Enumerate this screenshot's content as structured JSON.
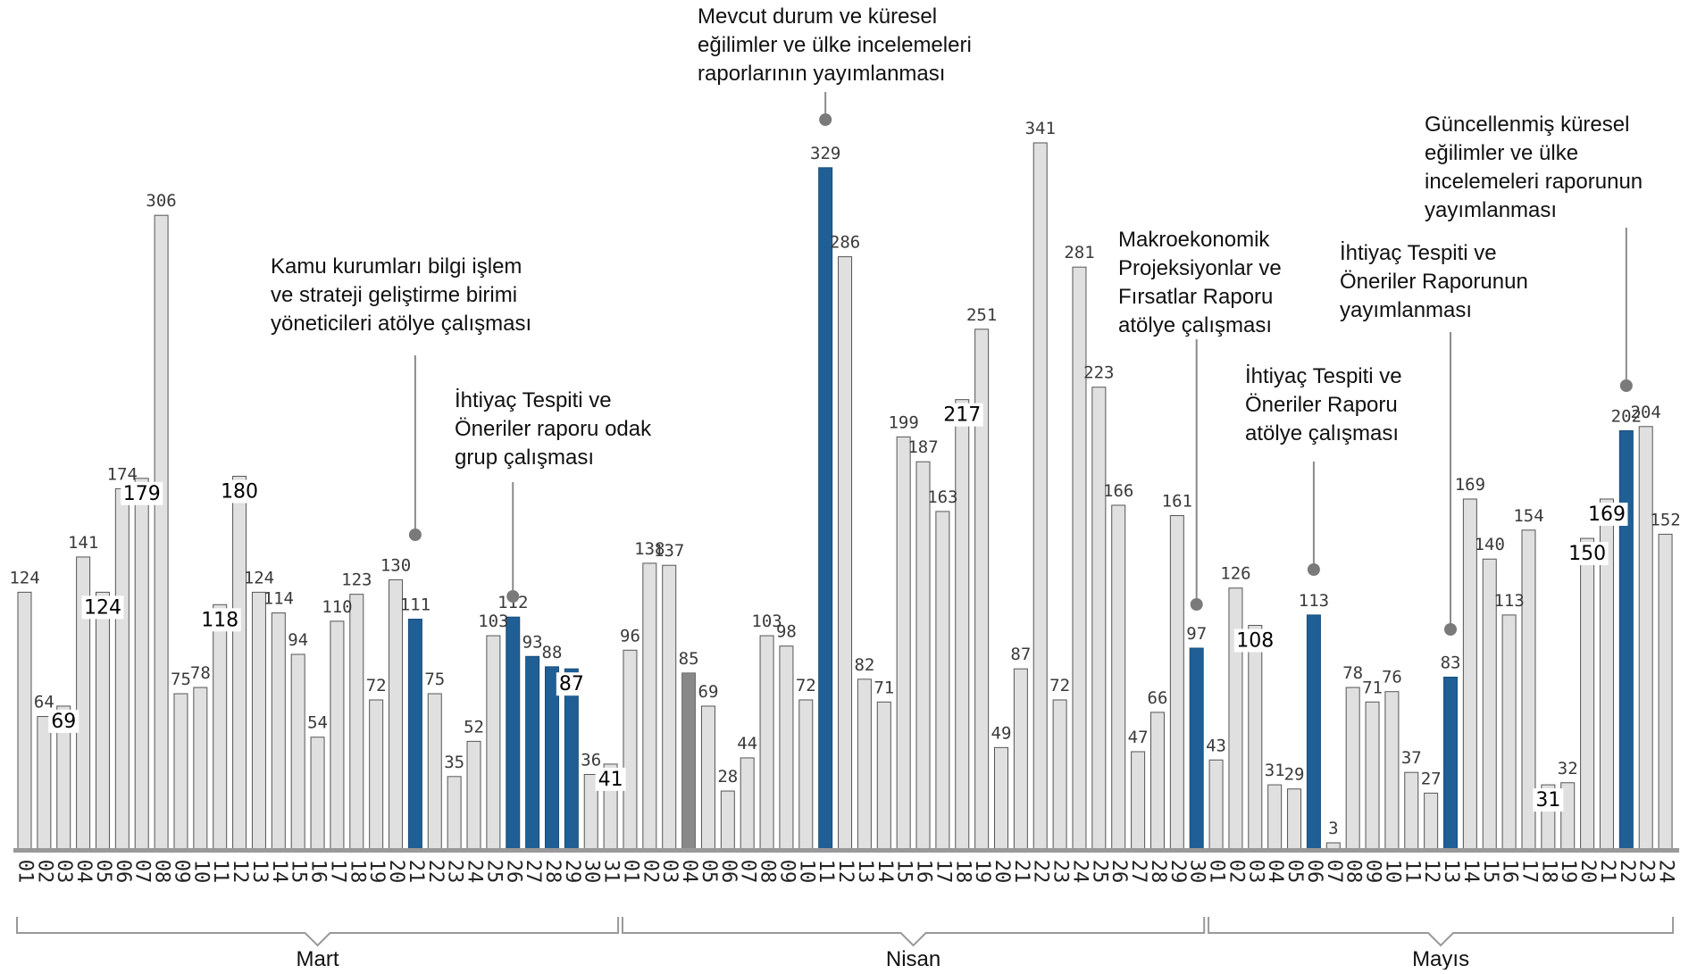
{
  "chart_data": {
    "type": "bar",
    "title": "",
    "xlabel": "",
    "ylabel": "",
    "ylim": [
      0,
      345
    ],
    "grid": false,
    "legend": "none",
    "colors": {
      "default": "#e0e0e0",
      "event": "#1f5f96",
      "muted": "#888888",
      "axis": "#999999",
      "stroke": "#555555"
    },
    "months": [
      {
        "name": "Mart",
        "start": 0,
        "end": 30
      },
      {
        "name": "Nisan",
        "start": 31,
        "end": 60
      },
      {
        "name": "Mayıs",
        "start": 61,
        "end": 84
      }
    ],
    "days": [
      "01",
      "02",
      "03",
      "04",
      "05",
      "06",
      "07",
      "08",
      "09",
      "10",
      "11",
      "12",
      "13",
      "14",
      "15",
      "16",
      "17",
      "18",
      "19",
      "20",
      "21",
      "22",
      "23",
      "24",
      "25",
      "26",
      "27",
      "28",
      "29",
      "30",
      "31",
      "01",
      "02",
      "03",
      "04",
      "05",
      "06",
      "07",
      "08",
      "09",
      "10",
      "11",
      "12",
      "13",
      "14",
      "15",
      "16",
      "17",
      "18",
      "19",
      "20",
      "21",
      "22",
      "23",
      "24",
      "25",
      "26",
      "27",
      "28",
      "29",
      "30",
      "01",
      "02",
      "03",
      "04",
      "05",
      "06",
      "07",
      "08",
      "09",
      "10",
      "11",
      "12",
      "13",
      "14",
      "15",
      "16",
      "17",
      "18",
      "19",
      "20",
      "21",
      "22",
      "23",
      "24"
    ],
    "values": [
      124,
      64,
      69,
      141,
      124,
      174,
      179,
      306,
      75,
      78,
      118,
      180,
      124,
      114,
      94,
      54,
      110,
      123,
      72,
      130,
      111,
      75,
      35,
      52,
      103,
      112,
      93,
      88,
      87,
      36,
      41,
      96,
      138,
      137,
      85,
      69,
      28,
      44,
      103,
      98,
      72,
      329,
      286,
      82,
      71,
      199,
      187,
      163,
      217,
      251,
      49,
      87,
      341,
      72,
      281,
      223,
      166,
      47,
      66,
      161,
      97,
      43,
      126,
      108,
      31,
      29,
      113,
      3,
      78,
      71,
      76,
      37,
      27,
      83,
      169,
      140,
      113,
      154,
      31,
      32,
      150,
      169,
      202,
      204,
      152
    ],
    "highlighted_indices": [
      20,
      25,
      26,
      27,
      28,
      41,
      60,
      66,
      73,
      82
    ],
    "muted_indices": [
      34
    ],
    "inside_label_indices": [
      2,
      4,
      6,
      10,
      11,
      28,
      30,
      48,
      63,
      78,
      80,
      81
    ],
    "annotations": [
      {
        "bar": 20,
        "text": [
          "Kamu kurumları bilgi işlem",
          "ve strateji geliştirme birimi",
          "yöneticileri atölye çalışması"
        ]
      },
      {
        "bar": 25,
        "text": [
          "İhtiyaç Tespiti ve",
          "Öneriler raporu odak",
          "grup çalışması"
        ]
      },
      {
        "bar": 41,
        "text": [
          "Mevcut durum ve küresel",
          "eğilimler ve ülke incelemeleri",
          "raporlarının yayımlanması"
        ]
      },
      {
        "bar": 60,
        "text": [
          "Makroekonomik",
          "Projeksiyonlar ve",
          "Fırsatlar Raporu",
          "atölye çalışması"
        ]
      },
      {
        "bar": 66,
        "text": [
          "İhtiyaç Tespiti ve",
          "Öneriler Raporu",
          "atölye çalışması"
        ]
      },
      {
        "bar": 73,
        "text": [
          "İhtiyaç Tespiti ve",
          "Öneriler Raporunun",
          "yayımlanması"
        ]
      },
      {
        "bar": 82,
        "text": [
          "Güncellenmiş küresel",
          "eğilimler ve ülke",
          "incelemeleri raporunun",
          "yayımlanması"
        ]
      }
    ]
  }
}
